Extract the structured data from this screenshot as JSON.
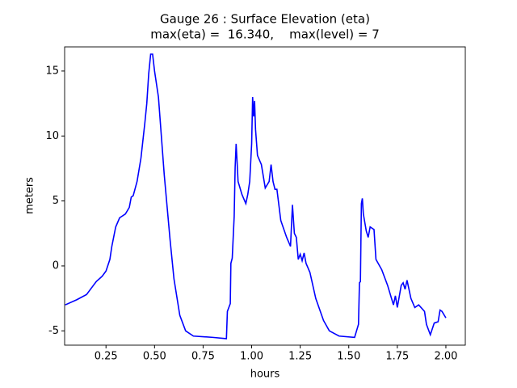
{
  "chart_data": {
    "type": "line",
    "title": "Gauge 26 : Surface Elevation (eta)",
    "subtitle": "max(eta) =  16.340,    max(level) = 7",
    "x_label": "hours",
    "y_label": "meters",
    "x": [
      0.04,
      0.1,
      0.15,
      0.18,
      0.2,
      0.23,
      0.25,
      0.27,
      0.28,
      0.3,
      0.32,
      0.35,
      0.37,
      0.38,
      0.39,
      0.41,
      0.43,
      0.45,
      0.46,
      0.47,
      0.48,
      0.49,
      0.5,
      0.52,
      0.53,
      0.55,
      0.58,
      0.6,
      0.63,
      0.66,
      0.7,
      0.8,
      0.87,
      0.875,
      0.89,
      0.893,
      0.9,
      0.91,
      0.915,
      0.92,
      0.925,
      0.93,
      0.95,
      0.97,
      0.98,
      0.99,
      1.0,
      1.005,
      1.01,
      1.015,
      1.02,
      1.03,
      1.05,
      1.07,
      1.09,
      1.1,
      1.11,
      1.12,
      1.13,
      1.15,
      1.18,
      1.2,
      1.21,
      1.22,
      1.23,
      1.24,
      1.25,
      1.26,
      1.27,
      1.28,
      1.3,
      1.33,
      1.37,
      1.4,
      1.45,
      1.53,
      1.55,
      1.555,
      1.56,
      1.565,
      1.57,
      1.575,
      1.59,
      1.6,
      1.61,
      1.63,
      1.64,
      1.67,
      1.7,
      1.72,
      1.73,
      1.74,
      1.75,
      1.77,
      1.78,
      1.79,
      1.8,
      1.82,
      1.84,
      1.86,
      1.89,
      1.9,
      1.92,
      1.94,
      1.96,
      1.97,
      1.98,
      2.0
    ],
    "series": [
      {
        "name": "eta",
        "color": "#0000ff",
        "values": [
          -3.0,
          -2.6,
          -2.2,
          -1.6,
          -1.2,
          -0.8,
          -0.4,
          0.5,
          1.5,
          3.0,
          3.7,
          4.0,
          4.5,
          5.3,
          5.4,
          6.5,
          8.3,
          11.0,
          12.5,
          14.8,
          16.3,
          16.3,
          15.0,
          13.0,
          11.0,
          7.0,
          2.0,
          -1.0,
          -3.8,
          -5.0,
          -5.4,
          -5.5,
          -5.6,
          -3.5,
          -2.9,
          0.2,
          0.6,
          3.8,
          7.6,
          9.4,
          8.0,
          6.5,
          5.5,
          4.8,
          5.5,
          6.5,
          9.4,
          13.0,
          11.5,
          12.7,
          10.5,
          8.5,
          7.8,
          6.0,
          6.5,
          7.8,
          6.5,
          5.9,
          5.9,
          3.5,
          2.2,
          1.5,
          4.7,
          2.5,
          2.2,
          0.5,
          0.9,
          0.4,
          1.0,
          0.2,
          -0.5,
          -2.5,
          -4.2,
          -5.0,
          -5.4,
          -5.5,
          -4.5,
          -1.3,
          -1.2,
          4.8,
          5.2,
          4.0,
          2.7,
          2.2,
          3.0,
          2.8,
          0.5,
          -0.3,
          -1.5,
          -2.5,
          -3.0,
          -2.3,
          -3.2,
          -1.5,
          -1.3,
          -1.8,
          -1.1,
          -2.5,
          -3.2,
          -3.0,
          -3.5,
          -4.5,
          -5.3,
          -4.4,
          -4.3,
          -3.4,
          -3.5,
          -4.0
        ]
      }
    ],
    "xlim": [
      0.037,
      2.1
    ],
    "ylim": [
      -6.1,
      16.86
    ],
    "xticks": [
      0.25,
      {
        "value": 0.5,
        "label": "0.50"
      },
      0.75,
      {
        "value": 1.0,
        "label": "1.00"
      },
      1.25,
      {
        "value": 1.5,
        "label": "1.50"
      },
      1.75,
      {
        "value": 2.0,
        "label": "2.00"
      }
    ],
    "yticks": [
      -5,
      0,
      5,
      10,
      15
    ]
  }
}
